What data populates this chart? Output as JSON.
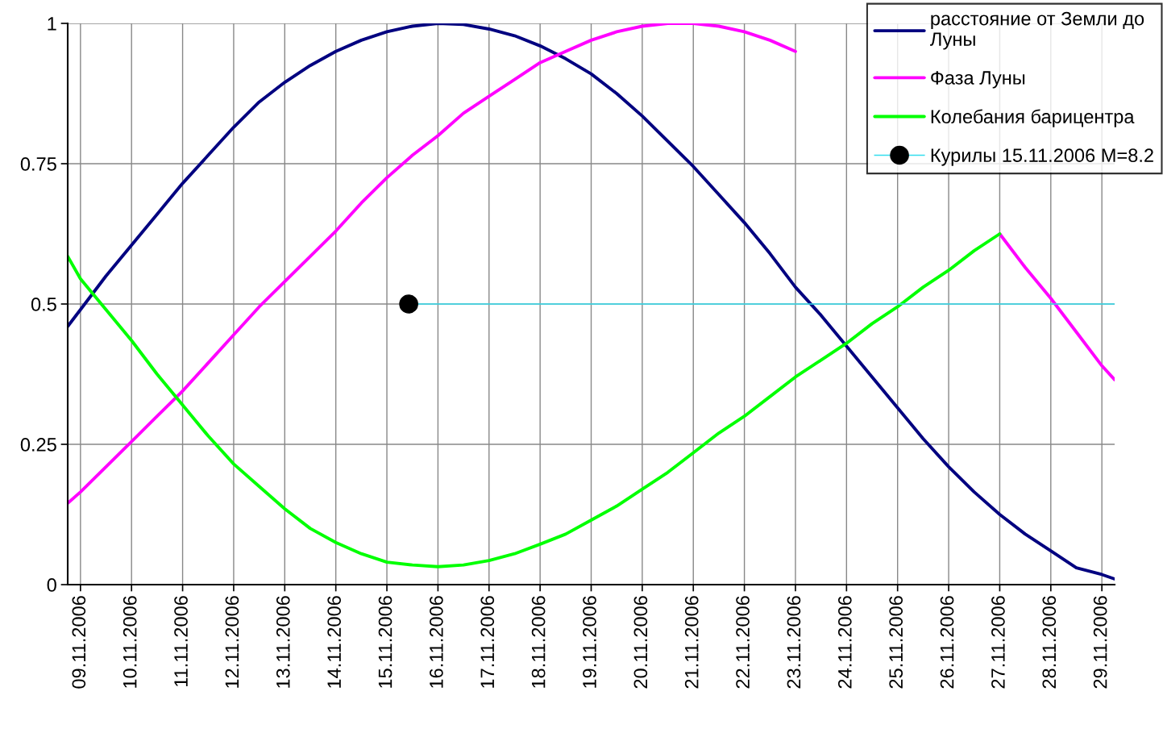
{
  "chart_data": {
    "type": "line",
    "x": [
      "2006-11-08T18:00",
      "2006-11-09",
      "2006-11-09T12:00",
      "2006-11-10",
      "2006-11-10T12:00",
      "2006-11-11",
      "2006-11-11T12:00",
      "2006-11-12",
      "2006-11-12T12:00",
      "2006-11-13",
      "2006-11-13T12:00",
      "2006-11-14",
      "2006-11-14T12:00",
      "2006-11-15",
      "2006-11-15T12:00",
      "2006-11-16",
      "2006-11-16T12:00",
      "2006-11-17",
      "2006-11-17T12:00",
      "2006-11-18",
      "2006-11-18T12:00",
      "2006-11-19",
      "2006-11-19T12:00",
      "2006-11-20",
      "2006-11-20T12:00",
      "2006-11-21",
      "2006-11-21T12:00",
      "2006-11-22",
      "2006-11-22T12:00",
      "2006-11-23",
      "2006-11-23T12:00",
      "2006-11-24",
      "2006-11-24T12:00",
      "2006-11-25",
      "2006-11-25T12:00",
      "2006-11-26",
      "2006-11-26T12:00",
      "2006-11-27",
      "2006-11-27T12:00",
      "2006-11-28",
      "2006-11-28T12:00",
      "2006-11-29",
      "2006-11-29T06:00"
    ],
    "series": [
      {
        "name": "расстояние от Земли до\nЛуны",
        "color": "#000080",
        "values": [
          0.46,
          0.49,
          0.55,
          0.605,
          0.66,
          0.715,
          0.765,
          0.815,
          0.86,
          0.895,
          0.925,
          0.95,
          0.97,
          0.985,
          0.995,
          1.0,
          0.998,
          0.99,
          0.978,
          0.96,
          0.937,
          0.91,
          0.875,
          0.835,
          0.79,
          0.745,
          0.695,
          0.645,
          0.59,
          0.53,
          0.48,
          0.425,
          0.37,
          0.315,
          0.26,
          0.21,
          0.165,
          0.125,
          0.09,
          0.06,
          0.03,
          0.018,
          0.01
        ]
      },
      {
        "name": "Фаза Луны",
        "color": "#ff00ff",
        "values": [
          0.145,
          0.165,
          0.21,
          0.255,
          0.3,
          0.345,
          0.395,
          0.445,
          0.495,
          0.54,
          0.585,
          0.63,
          0.68,
          0.725,
          0.765,
          0.8,
          0.84,
          0.87,
          0.9,
          0.93,
          0.95,
          0.97,
          0.985,
          0.995,
          1.0,
          1.0,
          0.995,
          0.985,
          0.97,
          0.95,
          null,
          null,
          null,
          null,
          null,
          null,
          null,
          0.625,
          0.565,
          0.51,
          0.45,
          0.39,
          0.365
        ]
      },
      {
        "name": "Колебания барицентра",
        "color": "#00ff00",
        "values": [
          0.585,
          0.545,
          0.49,
          0.435,
          0.375,
          0.32,
          0.265,
          0.215,
          0.175,
          0.135,
          0.1,
          0.075,
          0.055,
          0.04,
          0.035,
          0.032,
          0.035,
          0.043,
          0.055,
          0.072,
          0.09,
          0.115,
          0.14,
          0.17,
          0.2,
          0.235,
          0.27,
          0.3,
          0.335,
          0.37,
          0.4,
          0.43,
          0.465,
          0.495,
          0.53,
          0.56,
          0.595,
          0.625,
          null,
          null,
          null,
          null,
          null
        ]
      },
      {
        "name": "Курилы 15.11.2006 M=8.2",
        "color": "#33ddee",
        "marker": "circle",
        "x": [
          "2006-11-15T10:15",
          "2006-11-29T06:00"
        ],
        "values": [
          0.5,
          0.5
        ]
      }
    ],
    "xlim": [
      "2006-11-08T18:00",
      "2006-11-29T06:00"
    ],
    "xticks": [
      {
        "value": "2006-11-09",
        "label": "09.11.2006"
      },
      {
        "value": "2006-11-10",
        "label": "10.11.2006"
      },
      {
        "value": "2006-11-11",
        "label": "11.11.2006"
      },
      {
        "value": "2006-11-12",
        "label": "12.11.2006"
      },
      {
        "value": "2006-11-13",
        "label": "13.11.2006"
      },
      {
        "value": "2006-11-14",
        "label": "14.11.2006"
      },
      {
        "value": "2006-11-15",
        "label": "15.11.2006"
      },
      {
        "value": "2006-11-16",
        "label": "16.11.2006"
      },
      {
        "value": "2006-11-17",
        "label": "17.11.2006"
      },
      {
        "value": "2006-11-18",
        "label": "18.11.2006"
      },
      {
        "value": "2006-11-19",
        "label": "19.11.2006"
      },
      {
        "value": "2006-11-20",
        "label": "20.11.2006"
      },
      {
        "value": "2006-11-21",
        "label": "21.11.2006"
      },
      {
        "value": "2006-11-22",
        "label": "22.11.2006"
      },
      {
        "value": "2006-11-23",
        "label": "23.11.2006"
      },
      {
        "value": "2006-11-24",
        "label": "24.11.2006"
      },
      {
        "value": "2006-11-25",
        "label": "25.11.2006"
      },
      {
        "value": "2006-11-26",
        "label": "26.11.2006"
      },
      {
        "value": "2006-11-27",
        "label": "27.11.2006"
      },
      {
        "value": "2006-11-28",
        "label": "28.11.2006"
      },
      {
        "value": "2006-11-29",
        "label": "29.11.2006"
      }
    ],
    "ylim": [
      0,
      1
    ],
    "yticks": [
      0,
      {
        "value": 0.25,
        "label": "0.25"
      },
      {
        "value": 0.5,
        "label": "0.5"
      },
      {
        "value": 0.75,
        "label": "0.75"
      },
      1
    ],
    "grid": true,
    "legend": "top right",
    "marker": "none",
    "line_style": "solid"
  }
}
